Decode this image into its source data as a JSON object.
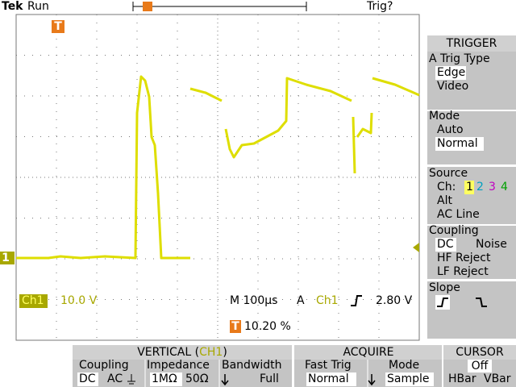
{
  "header": {
    "brand": "Tek",
    "status": "Run",
    "trigger_status": "Trig?",
    "trigger_marker": "T"
  },
  "display": {
    "channel_marker": "1",
    "ch_label": "Ch1",
    "ch_scale": "10.0 V",
    "timebase": "M 100µs",
    "trig_source_prefix": "A",
    "trig_source": "Ch1",
    "trig_level": "2.80 V",
    "trig_pos_marker": "T",
    "trig_pos": "10.20 %"
  },
  "trigger_menu": {
    "title": "TRIGGER",
    "type": {
      "label": "A Trig Type",
      "options": [
        "Edge",
        "Video"
      ]
    },
    "mode": {
      "label": "Mode",
      "options": [
        "Auto",
        "Normal"
      ]
    },
    "source": {
      "label": "Source",
      "ch_label": "Ch:",
      "channels": [
        "1",
        "2",
        "3",
        "4"
      ],
      "options": [
        "Alt",
        "AC Line"
      ]
    },
    "coupling": {
      "label": "Coupling",
      "options": [
        "DC",
        "Noise",
        "HF Reject",
        "LF Reject"
      ]
    },
    "slope": {
      "label": "Slope"
    }
  },
  "bottom": {
    "vertical": {
      "title": [
        "VERTICAL (",
        "CH1",
        ")"
      ],
      "headers": [
        "Coupling",
        "Impedance",
        "Bandwidth"
      ],
      "coupling": [
        "DC",
        "AC"
      ],
      "impedance": [
        "1MΩ",
        "50Ω"
      ],
      "bandwidth": "Full"
    },
    "acquire": {
      "title": "ACQUIRE",
      "headers": [
        "Fast Trig",
        "Mode"
      ],
      "fast_trig": "Normal",
      "mode": "Sample"
    },
    "cursor": {
      "title": "CURSOR",
      "state": "Off",
      "options": [
        "HBar",
        "VBar"
      ]
    }
  }
}
